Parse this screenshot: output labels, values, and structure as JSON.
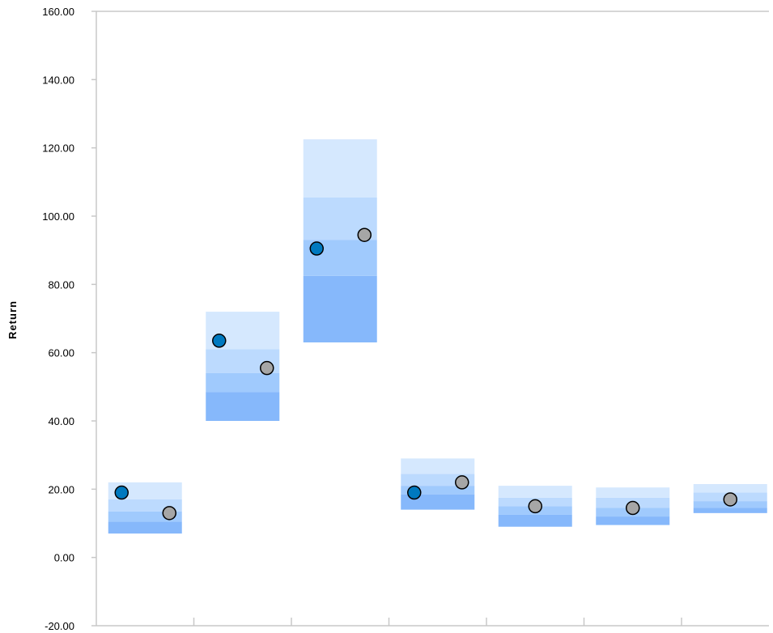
{
  "chart_data": {
    "type": "floating-bar-percentile",
    "ylabel": "Return",
    "ylim": [
      -20,
      160
    ],
    "yticks": [
      "160.00",
      "140.00",
      "120.00",
      "100.00",
      "80.00",
      "60.00",
      "40.00",
      "20.00",
      "0.00",
      "-20.00"
    ],
    "ytick_values": [
      160,
      140,
      120,
      100,
      80,
      60,
      40,
      20,
      0,
      -20
    ],
    "grid": false,
    "legend": "none",
    "groups": [
      {
        "bands": [
          7,
          10.5,
          13.5,
          17,
          22
        ],
        "points": {
          "blue": 19,
          "gray": 13
        }
      },
      {
        "bands": [
          40,
          48.5,
          54,
          61,
          72
        ],
        "points": {
          "blue": 63.5,
          "gray": 55.5
        }
      },
      {
        "bands": [
          63,
          82.5,
          93,
          105.5,
          122.5
        ],
        "points": {
          "blue": 90.5,
          "gray": 94.5
        }
      },
      {
        "bands": [
          14,
          18.5,
          21,
          24.5,
          29
        ],
        "points": {
          "blue": 19,
          "gray": 22
        }
      },
      {
        "bands": [
          9,
          12.5,
          15,
          17.5,
          21
        ],
        "points": {
          "gray": 15
        }
      },
      {
        "bands": [
          9.5,
          12,
          14.5,
          17.5,
          20.5
        ],
        "points": {
          "gray": 14.5
        }
      },
      {
        "bands": [
          13,
          14.5,
          16.5,
          19,
          21.5
        ],
        "points": {
          "gray": 17
        }
      }
    ],
    "colors": {
      "band_bottom": "#86b8fb",
      "band_low": "#a0cafd",
      "band_high": "#bcdafe",
      "band_top": "#d5e8fe",
      "point_blue": "#0079bf",
      "point_gray": "#a6a6a6",
      "axis": "#c8c8c8"
    }
  }
}
